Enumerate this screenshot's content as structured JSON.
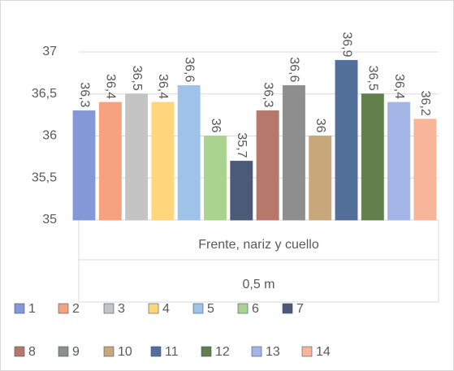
{
  "chart_data": {
    "type": "bar",
    "categories": [
      "Frente, nariz y cuello"
    ],
    "category_group": "0,5 m",
    "ylim": [
      35,
      37
    ],
    "yticks": [
      35,
      {
        "value": 35.5,
        "label": "35,5"
      },
      36,
      {
        "value": 36.5,
        "label": "36,5"
      },
      37
    ],
    "grid": true,
    "legend": "bottom",
    "series": [
      {
        "name": "1",
        "color": "#8497d6",
        "values": [
          36.3
        ],
        "value_labels": [
          "36,3"
        ]
      },
      {
        "name": "2",
        "color": "#f6a27e",
        "values": [
          36.4
        ],
        "value_labels": [
          "36,4"
        ]
      },
      {
        "name": "3",
        "color": "#c4c4c4",
        "values": [
          36.5
        ],
        "value_labels": [
          "36,5"
        ]
      },
      {
        "name": "4",
        "color": "#ffd67c",
        "values": [
          36.4
        ],
        "value_labels": [
          "36,4"
        ]
      },
      {
        "name": "5",
        "color": "#9fc2e8",
        "values": [
          36.6
        ],
        "value_labels": [
          "36,6"
        ]
      },
      {
        "name": "6",
        "color": "#a9d38f",
        "values": [
          36
        ],
        "value_labels": [
          "36"
        ]
      },
      {
        "name": "7",
        "color": "#4a5a78",
        "values": [
          35.7
        ],
        "value_labels": [
          "35,7"
        ]
      },
      {
        "name": "8",
        "color": "#b5786a",
        "values": [
          36.3
        ],
        "value_labels": [
          "36,3"
        ]
      },
      {
        "name": "9",
        "color": "#8e8e8e",
        "values": [
          36.6
        ],
        "value_labels": [
          "36,6"
        ]
      },
      {
        "name": "10",
        "color": "#c8a77a",
        "values": [
          36
        ],
        "value_labels": [
          "36"
        ]
      },
      {
        "name": "11",
        "color": "#52709a",
        "values": [
          36.9
        ],
        "value_labels": [
          "36,9"
        ]
      },
      {
        "name": "12",
        "color": "#62804c",
        "values": [
          36.5
        ],
        "value_labels": [
          "36,5"
        ]
      },
      {
        "name": "13",
        "color": "#a4b4e6",
        "values": [
          36.4
        ],
        "value_labels": [
          "36,4"
        ]
      },
      {
        "name": "14",
        "color": "#f8b59a",
        "values": [
          36.2
        ],
        "value_labels": [
          "36,2"
        ]
      }
    ]
  }
}
